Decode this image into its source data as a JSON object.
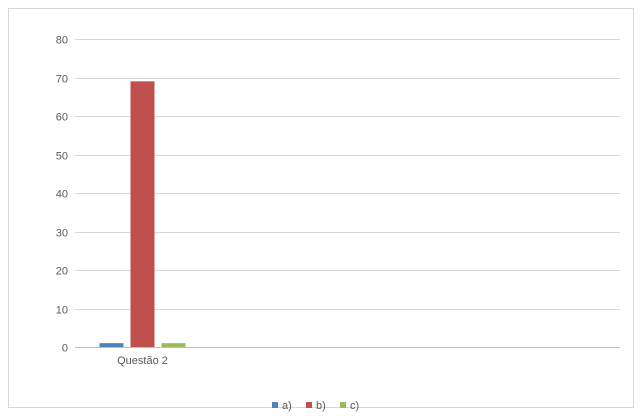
{
  "chart_data": {
    "type": "bar",
    "categories": [
      "Questão 2"
    ],
    "series": [
      {
        "name": "a)",
        "values": [
          1
        ],
        "color": "#4F81BD"
      },
      {
        "name": "b)",
        "values": [
          69
        ],
        "color": "#C0504D"
      },
      {
        "name": "c)",
        "values": [
          1
        ],
        "color": "#9BBB59"
      }
    ],
    "ylim": [
      0,
      80
    ],
    "yticks": [
      0,
      10,
      20,
      30,
      40,
      50,
      60,
      70,
      80
    ],
    "grid": true,
    "legend": "bottom",
    "colors": {
      "gridline": "#D9D9D9",
      "axis": "#BFBFBF",
      "border": "#D9D9D9",
      "text": "#595959"
    }
  }
}
